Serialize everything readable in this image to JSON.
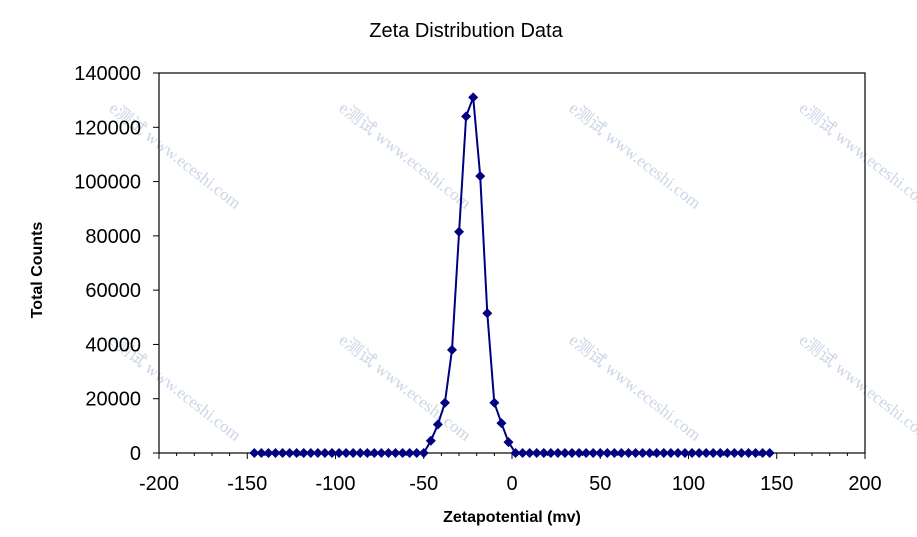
{
  "chart_data": {
    "type": "scatter",
    "title": "Zeta Distribution Data",
    "xlabel": "Zetapotential (mv)",
    "ylabel": "Total Counts",
    "xlim": [
      -200,
      200
    ],
    "ylim": [
      0,
      140000
    ],
    "x_ticks": [
      "-200",
      "-150",
      "-100",
      "-50",
      "0",
      "50",
      "100",
      "150",
      "200"
    ],
    "y_ticks": [
      "0",
      "20000",
      "40000",
      "60000",
      "80000",
      "100000",
      "120000",
      "140000"
    ],
    "marker": "diamond",
    "line": true,
    "color": "#000080",
    "grid": false,
    "legend": "none",
    "series": [
      {
        "name": "Total Counts",
        "x": [
          -146,
          -142,
          -138,
          -134,
          -130,
          -126,
          -122,
          -118,
          -114,
          -110,
          -106,
          -102,
          -98,
          -94,
          -90,
          -86,
          -82,
          -78,
          -74,
          -70,
          -66,
          -62,
          -58,
          -54,
          -50,
          -46,
          -42,
          -38,
          -34,
          -30,
          -26,
          -22,
          -18,
          -14,
          -10,
          -6,
          -2,
          2,
          6,
          10,
          14,
          18,
          22,
          26,
          30,
          34,
          38,
          42,
          46,
          50,
          54,
          58,
          62,
          66,
          70,
          74,
          78,
          82,
          86,
          90,
          94,
          98,
          102,
          106,
          110,
          114,
          118,
          122,
          126,
          130,
          134,
          138,
          142,
          146
        ],
        "values": [
          0,
          0,
          0,
          0,
          0,
          0,
          0,
          0,
          0,
          0,
          0,
          0,
          0,
          0,
          0,
          0,
          0,
          0,
          0,
          0,
          0,
          0,
          0,
          0,
          0,
          4500,
          10500,
          18500,
          38000,
          81500,
          124000,
          131000,
          102000,
          51500,
          18500,
          11000,
          4000,
          0,
          0,
          0,
          0,
          0,
          0,
          0,
          0,
          0,
          0,
          0,
          0,
          0,
          0,
          0,
          0,
          0,
          0,
          0,
          0,
          0,
          0,
          0,
          0,
          0,
          0,
          0,
          0,
          0,
          0,
          0,
          0,
          0,
          0,
          0,
          0,
          0
        ]
      }
    ],
    "watermark_text": [
      "e测试 www.eceshi.com"
    ]
  }
}
